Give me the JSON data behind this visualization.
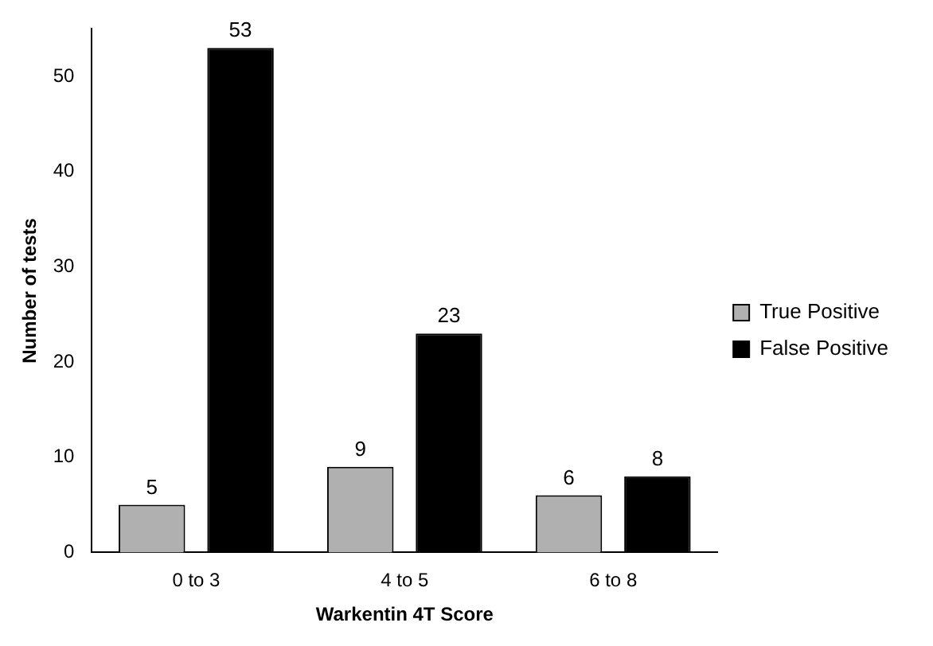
{
  "chart_data": {
    "type": "bar",
    "xlabel": "Warkentin 4T Score",
    "ylabel": "Number of tests",
    "categories": [
      "0 to 3",
      "4 to 5",
      "6 to 8"
    ],
    "series": [
      {
        "name": "True Positive",
        "color": "#b0b0b0",
        "values": [
          5,
          9,
          6
        ]
      },
      {
        "name": "False Positive",
        "color": "#000000",
        "values": [
          53,
          23,
          8
        ]
      }
    ],
    "ylim": [
      0,
      55
    ],
    "yticks": [
      0,
      10,
      20,
      30,
      40,
      50
    ],
    "grid": false,
    "legend": "right",
    "data_labels": true
  }
}
